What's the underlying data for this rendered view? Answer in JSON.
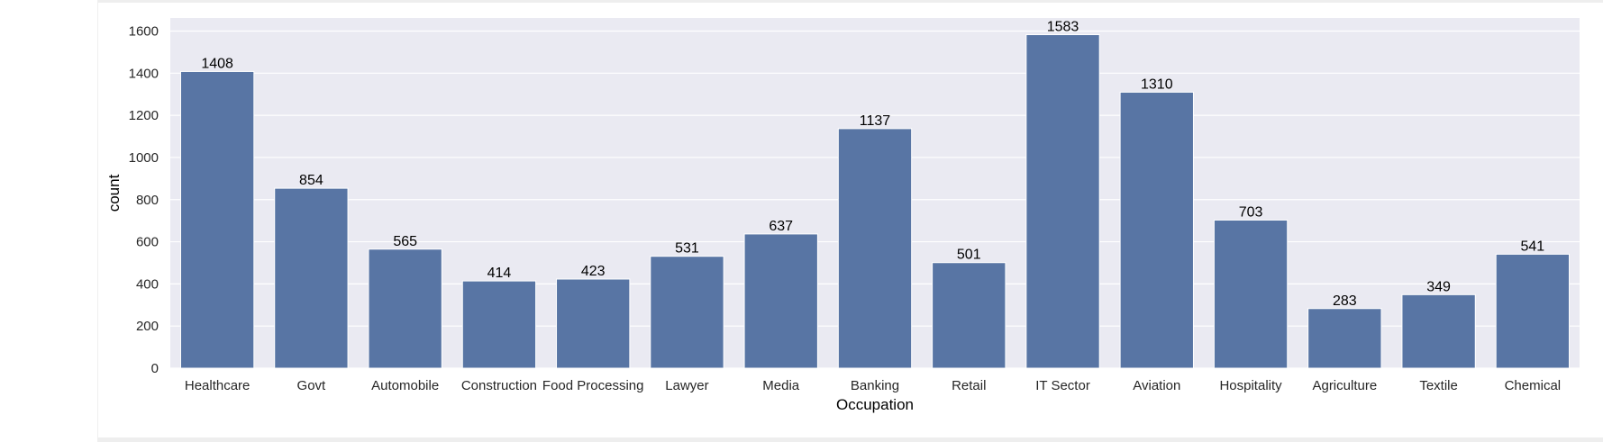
{
  "colors": {
    "bar": "#5875a4",
    "plot_background": "#eaeaf2",
    "grid": "#ffffff"
  },
  "chart_data": {
    "type": "bar",
    "title": "",
    "xlabel": "Occupation",
    "ylabel": "count",
    "categories": [
      "Healthcare",
      "Govt",
      "Automobile",
      "Construction",
      "Food Processing",
      "Lawyer",
      "Media",
      "Banking",
      "Retail",
      "IT Sector",
      "Aviation",
      "Hospitality",
      "Agriculture",
      "Textile",
      "Chemical"
    ],
    "values": [
      1408,
      854,
      565,
      414,
      423,
      531,
      637,
      1137,
      501,
      1583,
      1310,
      703,
      283,
      349,
      541
    ],
    "ylim": [
      0,
      1662
    ],
    "yticks": [
      0,
      200,
      400,
      600,
      800,
      1000,
      1200,
      1400,
      1600
    ],
    "grid": true,
    "data_labels": true,
    "legend": "none"
  }
}
